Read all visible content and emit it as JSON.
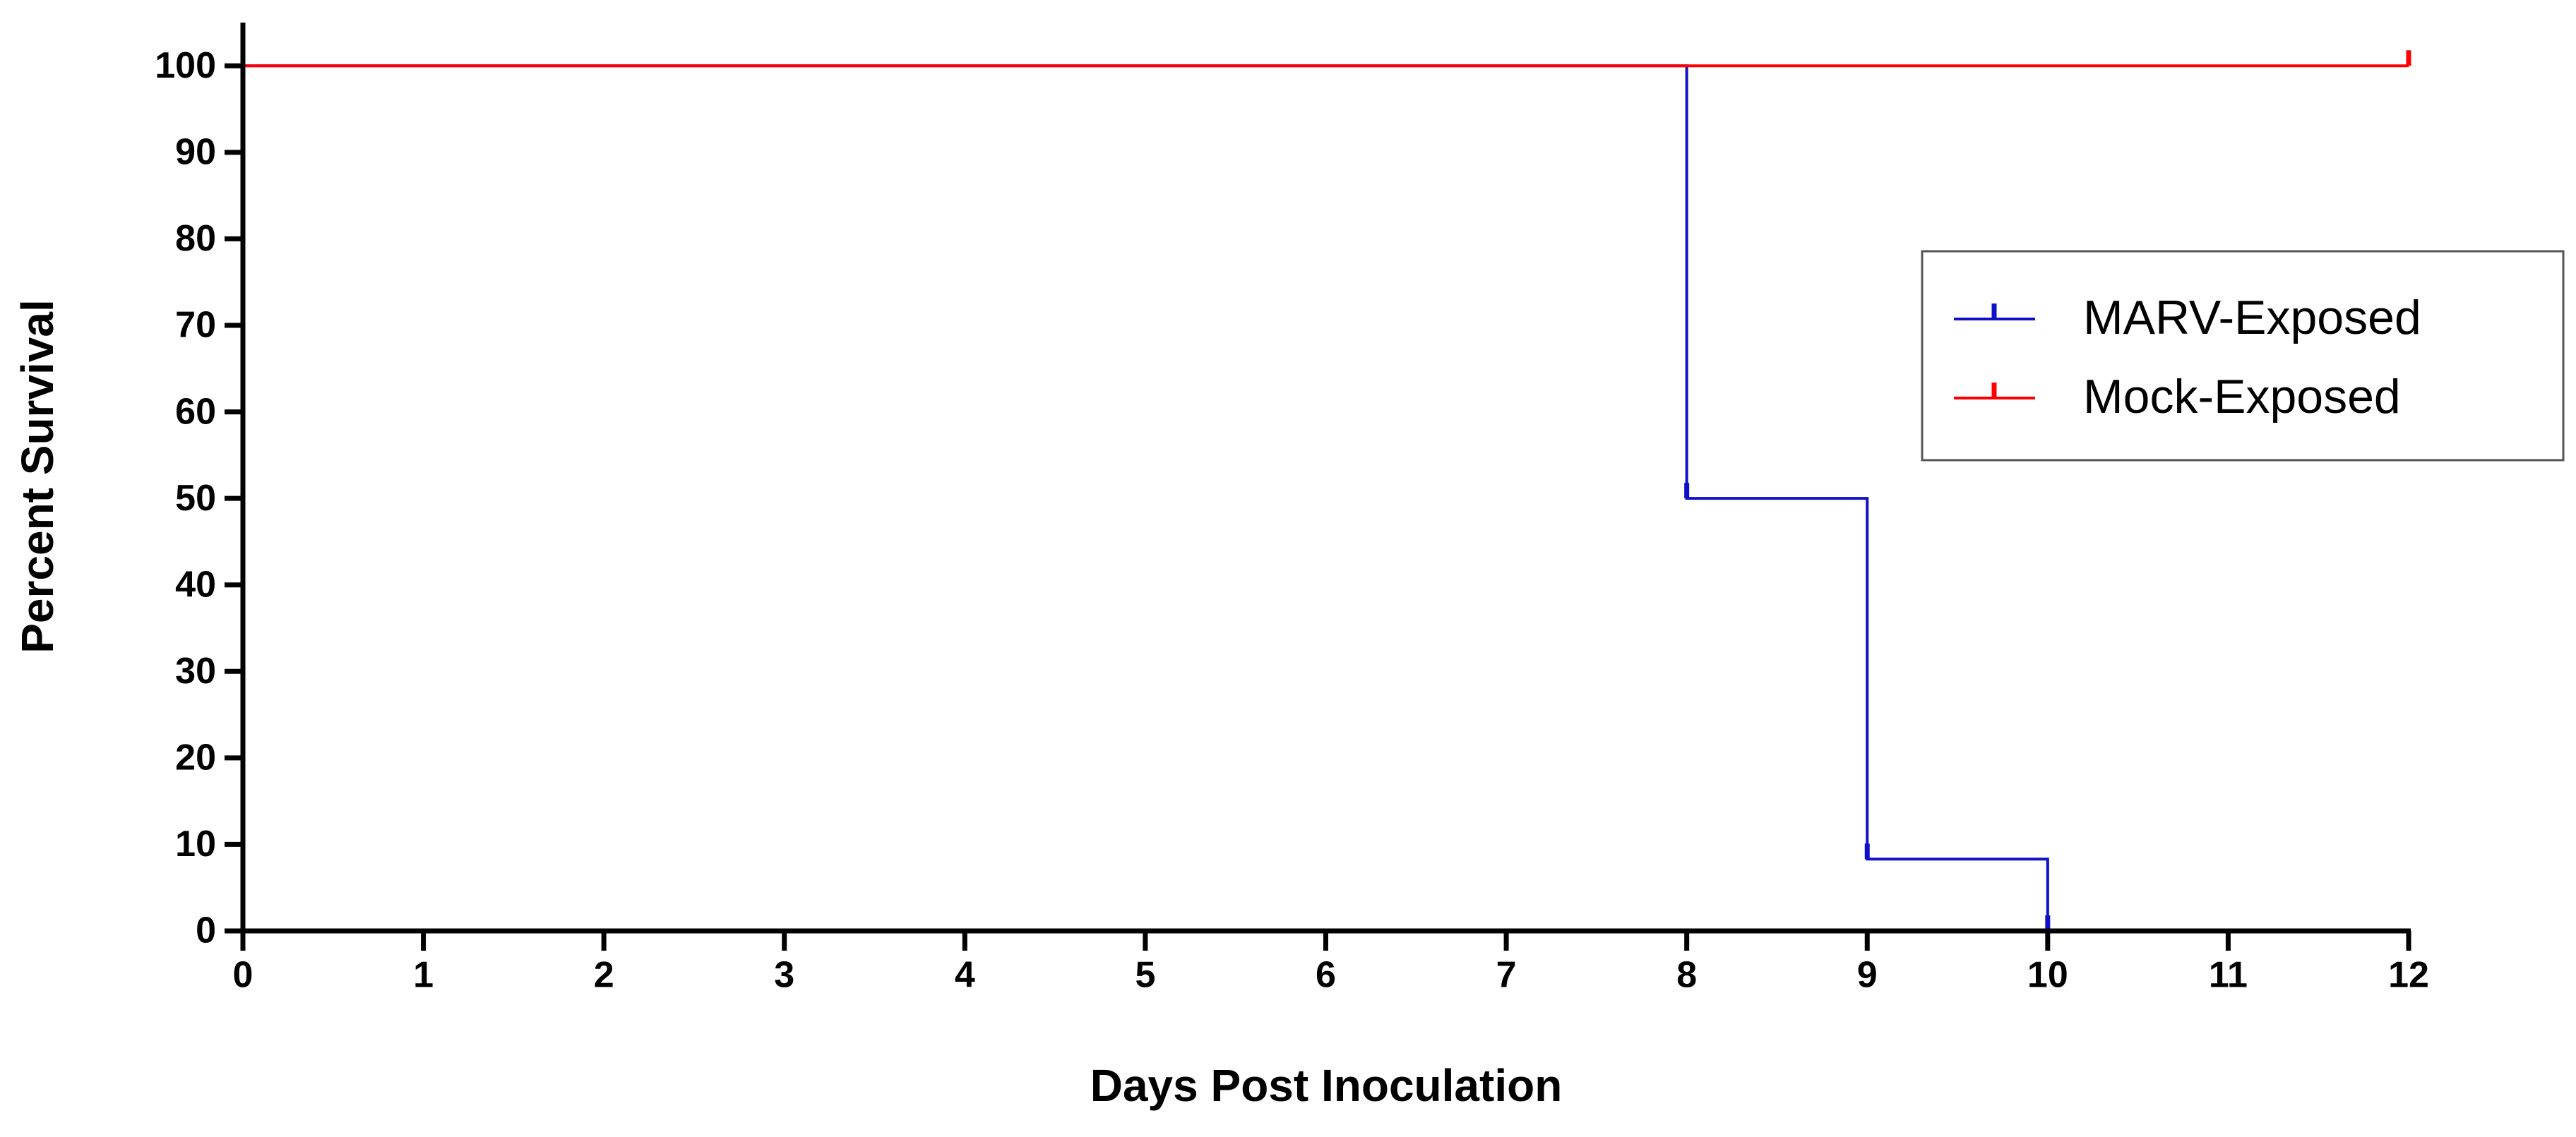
{
  "chart_data": {
    "type": "line",
    "step": true,
    "x_label": "Days Post Inoculation",
    "y_label": "Percent Survival",
    "series": [
      {
        "name": "MARV-Exposed",
        "color": "#1010c8",
        "x": [
          0,
          8,
          9,
          10
        ],
        "values": [
          100,
          50,
          8.3,
          0
        ]
      },
      {
        "name": "Mock-Exposed",
        "color": "#ff0000",
        "x": [
          0,
          12
        ],
        "values": [
          100,
          100
        ]
      }
    ],
    "xlim": [
      0,
      12
    ],
    "xticks": [
      0,
      1,
      2,
      3,
      4,
      5,
      6,
      7,
      8,
      9,
      10,
      11,
      12
    ],
    "ylim": [
      0,
      105
    ],
    "yticks": [
      0,
      10,
      20,
      30,
      40,
      50,
      60,
      70,
      80,
      90,
      100
    ],
    "grid": false,
    "legend": "right"
  }
}
